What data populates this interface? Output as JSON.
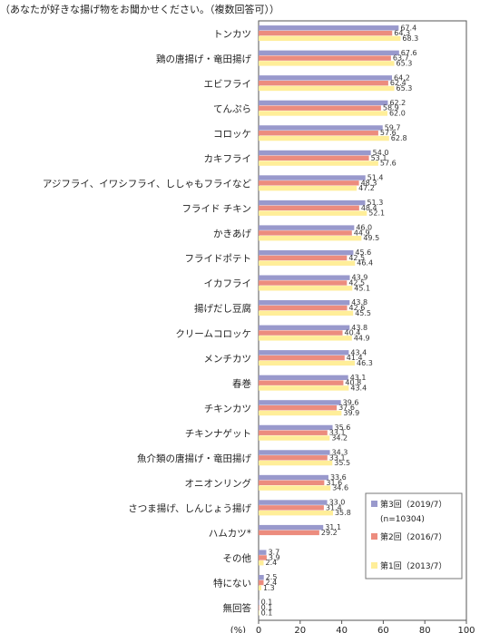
{
  "title": "（あなたが好きな揚げ物をお聞かせください。（複数回答可））",
  "chart_data": {
    "type": "bar",
    "orientation": "horizontal",
    "categories": [
      "トンカツ",
      "鶏の唐揚げ・竜田揚げ",
      "エビフライ",
      "てんぷら",
      "コロッケ",
      "カキフライ",
      "アジフライ、イワシフライ、ししゃもフライなど",
      "フライド チキン",
      "かきあげ",
      "フライドポテト",
      "イカフライ",
      "揚げだし豆腐",
      "クリームコロッケ",
      "メンチカツ",
      "春巻",
      "チキンカツ",
      "チキンナゲット",
      "魚介類の唐揚げ・竜田揚げ",
      "オニオンリング",
      "さつま揚げ、しんじょう揚げ",
      "ハムカツ*",
      "その他",
      "特にない",
      "無回答"
    ],
    "series": [
      {
        "name": "第3回（2019/7）",
        "color": "#9999cc",
        "values": [
          67.4,
          67.6,
          64.2,
          62.2,
          59.7,
          54.0,
          51.4,
          51.3,
          46.0,
          45.6,
          43.9,
          43.8,
          43.8,
          43.4,
          43.1,
          39.6,
          35.6,
          34.3,
          33.6,
          33.0,
          31.1,
          3.7,
          2.5,
          0.1
        ]
      },
      {
        "name": "第2回（2016/7）",
        "color": "#ec8c7e",
        "values": [
          64.3,
          63.7,
          62.4,
          58.9,
          57.6,
          53.1,
          48.3,
          48.4,
          44.9,
          42.5,
          42.5,
          42.6,
          40.4,
          41.4,
          40.8,
          37.6,
          33.1,
          33.1,
          31.6,
          31.4,
          29.2,
          3.9,
          2.4,
          0.1
        ]
      },
      {
        "name": "第1回（2013/7）",
        "color": "#ffee99",
        "values": [
          68.3,
          65.3,
          65.3,
          62.0,
          62.8,
          57.6,
          47.2,
          52.1,
          49.5,
          46.4,
          45.1,
          45.5,
          44.9,
          46.3,
          43.4,
          39.9,
          34.2,
          35.5,
          34.6,
          35.8,
          null,
          2.4,
          1.3,
          0.1
        ]
      }
    ],
    "legend_note": "(n=10304)",
    "xlim": [
      0,
      100
    ],
    "xticks": [
      0,
      20,
      40,
      60,
      80,
      100
    ],
    "unit_label": "(%)",
    "grid": false,
    "legend_position": "bottom-right"
  }
}
